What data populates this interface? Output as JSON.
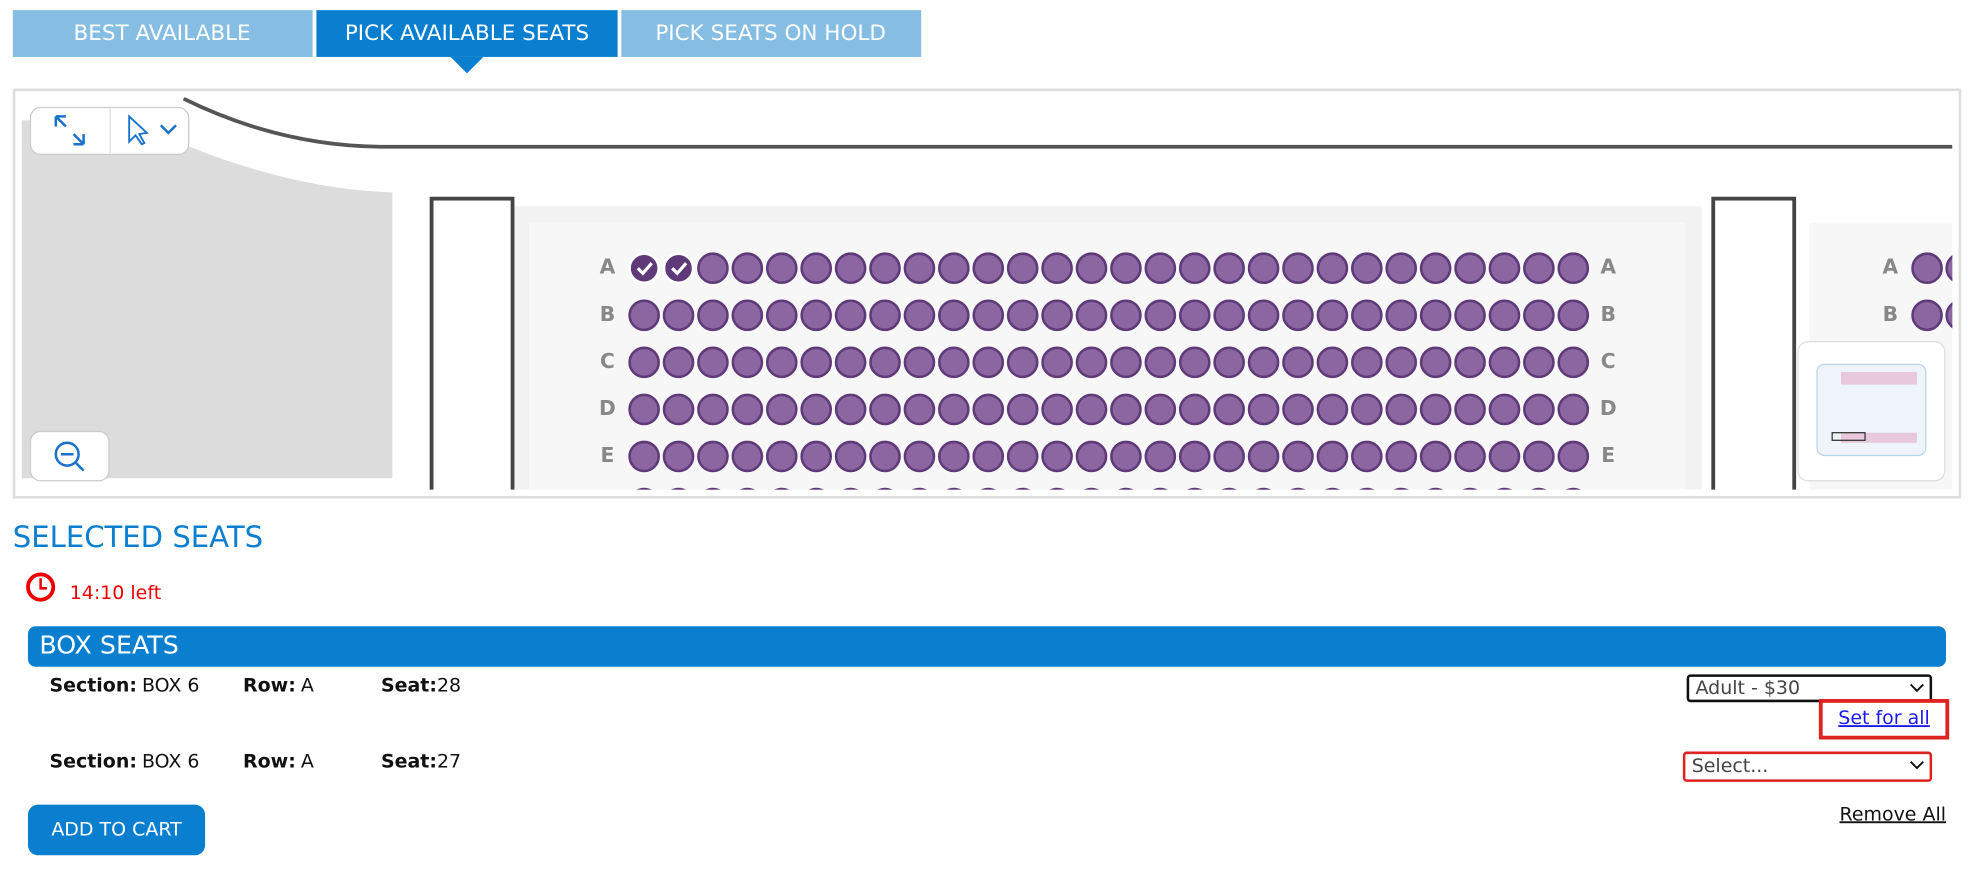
{
  "tabs": [
    "BEST AVAILABLE",
    "PICK AVAILABLE SEATS",
    "PICK SEATS ON HOLD"
  ],
  "seat_map": {
    "rows": [
      "A",
      "B",
      "C",
      "D",
      "E"
    ],
    "side_rows": [
      "A",
      "B"
    ]
  },
  "selected": {
    "title": "SELECTED SEATS",
    "timer": "14:10 left",
    "group": "BOX SEATS",
    "seats": [
      {
        "section_label": "Section:",
        "section": "BOX 6",
        "row_label": "Row:",
        "row": "A",
        "seat_label": "Seat:",
        "seat": "28",
        "ticket": "Adult - $30"
      },
      {
        "section_label": "Section:",
        "section": "BOX 6",
        "row_label": "Row:",
        "row": "A",
        "seat_label": "Seat:",
        "seat": "27",
        "ticket": "Select..."
      }
    ],
    "set_for_all": "Set for all",
    "remove_all": "Remove All",
    "add_to_cart": "ADD TO CART"
  }
}
